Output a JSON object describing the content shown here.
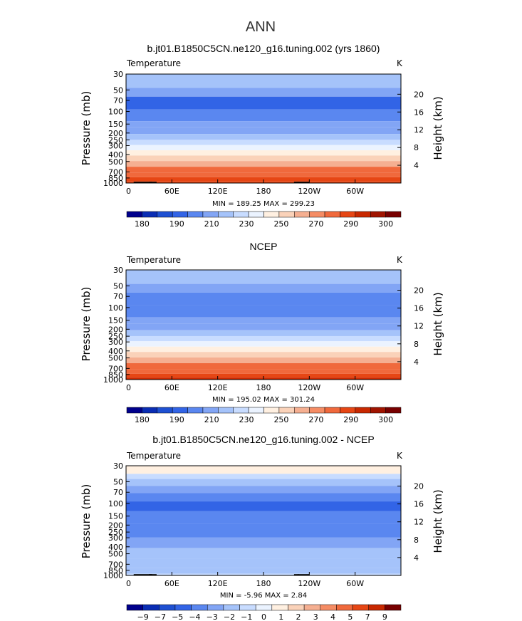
{
  "figure": {
    "season_title": "ANN"
  },
  "chart_data": [
    {
      "type": "heatmap",
      "title": "b.jt01.B1850C5CN.ne120_g16.tuning.002 (yrs 1860)",
      "variable_label": "Temperature",
      "units_label": "K",
      "ylabel": "Pressure  (mb)",
      "ylabel_right": "Height  (km)",
      "x_ticks": [
        "0",
        "60E",
        "120E",
        "180",
        "120W",
        "60W"
      ],
      "y_ticks": [
        "30",
        "50",
        "70",
        "100",
        "150",
        "200",
        "250",
        "300",
        "400",
        "500",
        "700",
        "850",
        "1000"
      ],
      "y_ticks_right": [
        "20",
        "16",
        "12",
        "8",
        "4"
      ],
      "stats_text": "MIN = 189.25  MAX = 299.23",
      "min": 189.25,
      "max": 299.23,
      "colorbar_labels": [
        "180",
        "190",
        "210",
        "230",
        "250",
        "270",
        "290",
        "300"
      ],
      "colorbar_colors": [
        "#00008c",
        "#0a2db4",
        "#1e50d2",
        "#3264e6",
        "#5a87f0",
        "#82a5f5",
        "#a5c3fa",
        "#c8dcff",
        "#ebf3ff",
        "#fff0e1",
        "#fad2b9",
        "#f5af91",
        "#f58c64",
        "#f0693c",
        "#e64614",
        "#c82800",
        "#a01400",
        "#780000"
      ],
      "bands": [
        {
          "p": 1000,
          "v": 290
        },
        {
          "p": 880,
          "v": 285
        },
        {
          "p": 780,
          "v": 280
        },
        {
          "p": 650,
          "v": 275
        },
        {
          "p": 540,
          "v": 265
        },
        {
          "p": 450,
          "v": 255
        },
        {
          "p": 380,
          "v": 245
        },
        {
          "p": 320,
          "v": 235
        },
        {
          "p": 270,
          "v": 225
        },
        {
          "p": 230,
          "v": 215
        },
        {
          "p": 185,
          "v": 210
        },
        {
          "p": 150,
          "v": 205
        },
        {
          "p": 125,
          "v": 200
        },
        {
          "p": 70,
          "v": 195
        },
        {
          "p": 55,
          "v": 205
        },
        {
          "p": 40,
          "v": 215
        }
      ]
    },
    {
      "type": "heatmap",
      "title": "NCEP",
      "variable_label": "Temperature",
      "units_label": "K",
      "ylabel": "Pressure  (mb)",
      "ylabel_right": "Height  (km)",
      "x_ticks": [
        "0",
        "60E",
        "120E",
        "180",
        "120W",
        "60W"
      ],
      "y_ticks": [
        "30",
        "50",
        "70",
        "100",
        "150",
        "200",
        "250",
        "300",
        "400",
        "500",
        "700",
        "850",
        "1000"
      ],
      "y_ticks_right": [
        "20",
        "16",
        "12",
        "8",
        "4"
      ],
      "stats_text": "MIN = 195.02  MAX = 301.24",
      "min": 195.02,
      "max": 301.24,
      "colorbar_labels": [
        "180",
        "190",
        "210",
        "230",
        "250",
        "270",
        "290",
        "300"
      ],
      "colorbar_colors": [
        "#00008c",
        "#0a2db4",
        "#1e50d2",
        "#3264e6",
        "#5a87f0",
        "#82a5f5",
        "#a5c3fa",
        "#c8dcff",
        "#ebf3ff",
        "#fff0e1",
        "#fad2b9",
        "#f5af91",
        "#f58c64",
        "#f0693c",
        "#e64614",
        "#c82800",
        "#a01400",
        "#780000"
      ],
      "bands": [
        {
          "p": 1000,
          "v": 295
        },
        {
          "p": 880,
          "v": 287
        },
        {
          "p": 780,
          "v": 282
        },
        {
          "p": 650,
          "v": 275
        },
        {
          "p": 540,
          "v": 265
        },
        {
          "p": 450,
          "v": 255
        },
        {
          "p": 380,
          "v": 245
        },
        {
          "p": 320,
          "v": 235
        },
        {
          "p": 270,
          "v": 225
        },
        {
          "p": 230,
          "v": 218
        },
        {
          "p": 185,
          "v": 212
        },
        {
          "p": 150,
          "v": 208
        },
        {
          "p": 125,
          "v": 203
        },
        {
          "p": 70,
          "v": 199
        },
        {
          "p": 55,
          "v": 207
        },
        {
          "p": 40,
          "v": 216
        }
      ]
    },
    {
      "type": "heatmap",
      "title": "b.jt01.B1850C5CN.ne120_g16.tuning.002 - NCEP",
      "variable_label": "Temperature",
      "units_label": "K",
      "ylabel": "Pressure  (mb)",
      "ylabel_right": "Height  (km)",
      "x_ticks": [
        "0",
        "60E",
        "120E",
        "180",
        "120W",
        "60W"
      ],
      "y_ticks": [
        "30",
        "50",
        "70",
        "100",
        "150",
        "200",
        "250",
        "300",
        "400",
        "500",
        "700",
        "850",
        "1000"
      ],
      "y_ticks_right": [
        "20",
        "16",
        "12",
        "8",
        "4"
      ],
      "stats_text": "MIN =   -5.96  MAX =    2.84",
      "min": -5.96,
      "max": 2.84,
      "colorbar_labels": [
        "-9",
        "-7",
        "-5",
        "-4",
        "-3",
        "-2",
        "-1",
        "0",
        "1",
        "2",
        "3",
        "4",
        "5",
        "7",
        "9"
      ],
      "colorbar_colors": [
        "#00008c",
        "#0a2db4",
        "#1e50d2",
        "#3264e6",
        "#5a87f0",
        "#82a5f5",
        "#a5c3fa",
        "#c8dcff",
        "#ebf3ff",
        "#fff0e1",
        "#fad2b9",
        "#f5af91",
        "#f58c64",
        "#f0693c",
        "#e64614",
        "#c82800",
        "#780000"
      ],
      "bands": [
        {
          "p": 1000,
          "v": -0.5
        },
        {
          "p": 900,
          "v": -1.5
        },
        {
          "p": 700,
          "v": -1.5
        },
        {
          "p": 500,
          "v": -1.5
        },
        {
          "p": 350,
          "v": -2.5
        },
        {
          "p": 250,
          "v": -3.5
        },
        {
          "p": 150,
          "v": -3.5
        },
        {
          "p": 110,
          "v": -4.5
        },
        {
          "p": 80,
          "v": -3.5
        },
        {
          "p": 65,
          "v": -2.5
        },
        {
          "p": 50,
          "v": -1.5
        },
        {
          "p": 42,
          "v": -0.5
        },
        {
          "p": 36,
          "v": 0.5
        }
      ]
    }
  ]
}
